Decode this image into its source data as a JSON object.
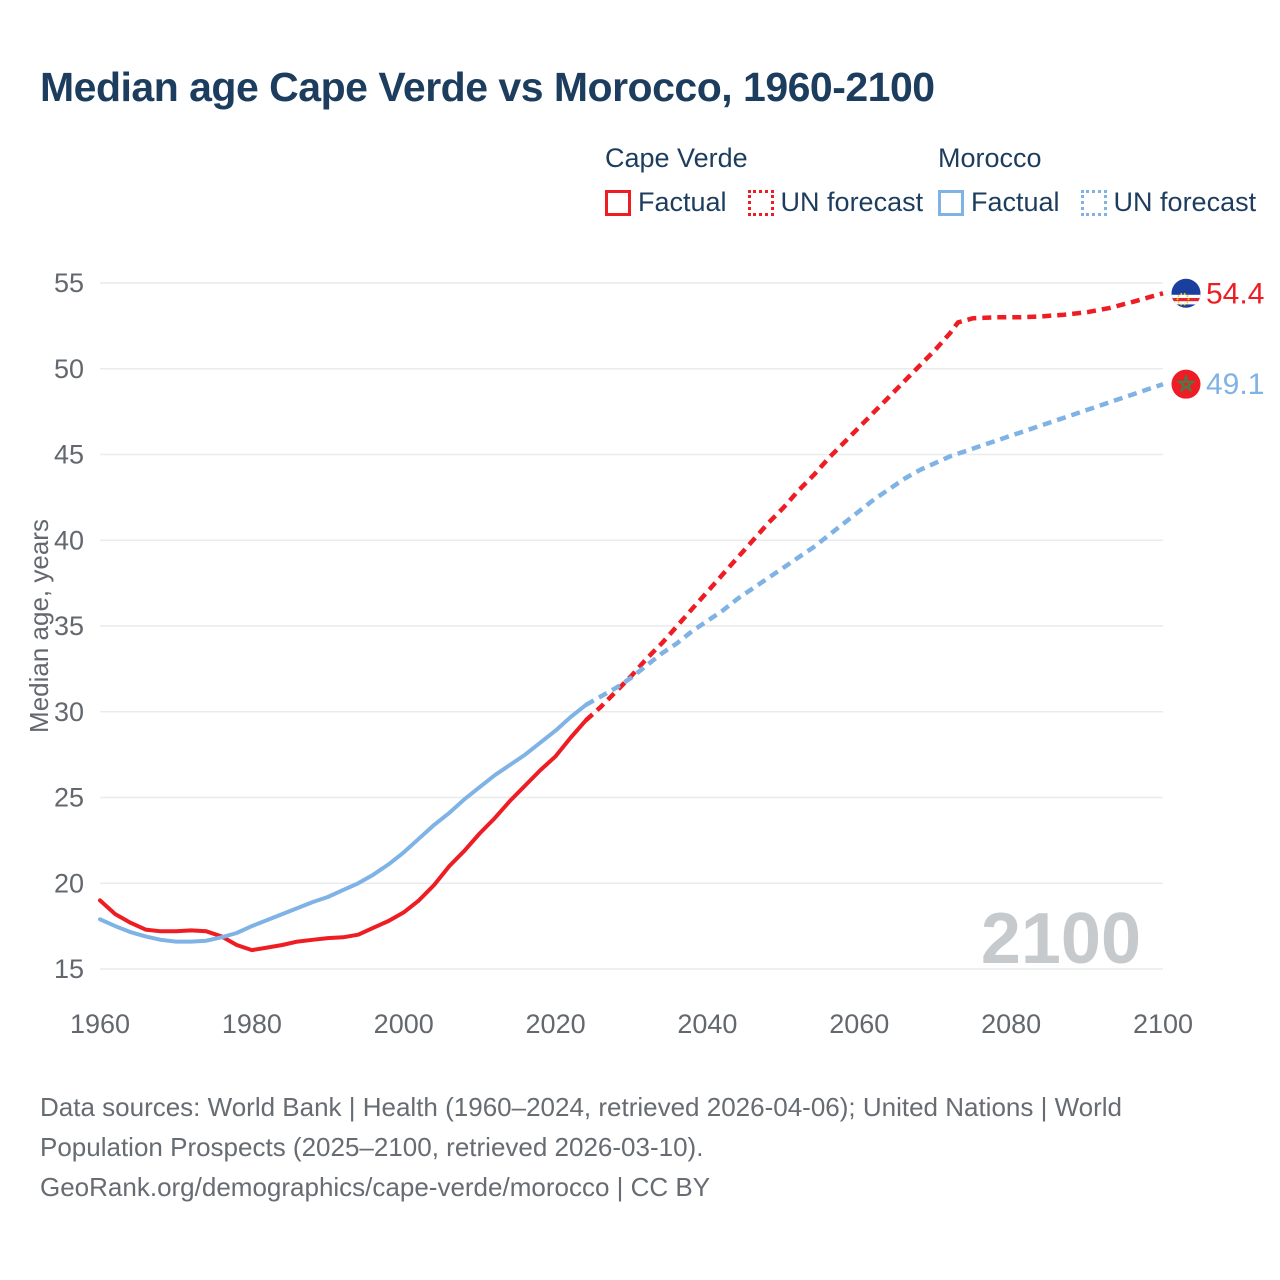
{
  "title": "Median age Cape Verde vs Morocco, 1960-2100",
  "legend": {
    "groups": [
      {
        "name": "Cape Verde",
        "color": "#ee1c23",
        "items": [
          {
            "label": "Factual",
            "style": "solid"
          },
          {
            "label": "UN forecast",
            "style": "dotted"
          }
        ]
      },
      {
        "name": "Morocco",
        "color": "#7fb2e5",
        "items": [
          {
            "label": "Factual",
            "style": "solid"
          },
          {
            "label": "UN forecast",
            "style": "dotted"
          }
        ]
      }
    ]
  },
  "chart_data": {
    "type": "line",
    "title": "Median age Cape Verde vs Morocco, 1960-2100",
    "xlabel": "",
    "ylabel": "Median age, years",
    "xlim": [
      1960,
      2100
    ],
    "ylim": [
      15,
      55
    ],
    "xticks": [
      1960,
      1980,
      2000,
      2020,
      2040,
      2060,
      2080,
      2100
    ],
    "yticks": [
      15,
      20,
      25,
      30,
      35,
      40,
      45,
      50,
      55
    ],
    "grid": true,
    "legend_position": "top-right",
    "watermark": "2100",
    "colors": {
      "axis_text": "#63686e",
      "gridline": "#e9ebec",
      "watermark": "#c7cacd"
    },
    "series": [
      {
        "name": "Cape Verde",
        "color": "#ee1c23",
        "end_label": "54.4",
        "flag": "cape-verde",
        "segments": [
          {
            "kind": "factual",
            "dash": false,
            "points": [
              [
                1960,
                19.0
              ],
              [
                1962,
                18.2
              ],
              [
                1964,
                17.7
              ],
              [
                1966,
                17.3
              ],
              [
                1968,
                17.2
              ],
              [
                1970,
                17.2
              ],
              [
                1972,
                17.25
              ],
              [
                1974,
                17.2
              ],
              [
                1976,
                16.9
              ],
              [
                1978,
                16.4
              ],
              [
                1980,
                16.1
              ],
              [
                1982,
                16.25
              ],
              [
                1984,
                16.4
              ],
              [
                1986,
                16.6
              ],
              [
                1988,
                16.7
              ],
              [
                1990,
                16.8
              ],
              [
                1992,
                16.85
              ],
              [
                1994,
                17.0
              ],
              [
                1996,
                17.4
              ],
              [
                1998,
                17.8
              ],
              [
                2000,
                18.3
              ],
              [
                2002,
                19.0
              ],
              [
                2004,
                19.9
              ],
              [
                2006,
                21.0
              ],
              [
                2008,
                21.9
              ],
              [
                2010,
                22.9
              ],
              [
                2012,
                23.8
              ],
              [
                2014,
                24.8
              ],
              [
                2016,
                25.7
              ],
              [
                2018,
                26.6
              ],
              [
                2020,
                27.4
              ],
              [
                2022,
                28.5
              ],
              [
                2024,
                29.5
              ]
            ]
          },
          {
            "kind": "un-forecast",
            "dash": true,
            "points": [
              [
                2024,
                29.5
              ],
              [
                2026,
                30.3
              ],
              [
                2028,
                31.2
              ],
              [
                2030,
                32.1
              ],
              [
                2032,
                33.1
              ],
              [
                2034,
                34.0
              ],
              [
                2036,
                35.0
              ],
              [
                2038,
                36.0
              ],
              [
                2040,
                37.0
              ],
              [
                2042,
                38.0
              ],
              [
                2044,
                39.0
              ],
              [
                2046,
                40.0
              ],
              [
                2048,
                41.0
              ],
              [
                2050,
                41.9
              ],
              [
                2052,
                42.9
              ],
              [
                2054,
                43.8
              ],
              [
                2056,
                44.8
              ],
              [
                2058,
                45.7
              ],
              [
                2060,
                46.6
              ],
              [
                2062,
                47.5
              ],
              [
                2064,
                48.4
              ],
              [
                2066,
                49.3
              ],
              [
                2068,
                50.2
              ],
              [
                2070,
                51.1
              ],
              [
                2072,
                52.1
              ],
              [
                2073,
                52.7
              ],
              [
                2075,
                52.95
              ],
              [
                2078,
                53.0
              ],
              [
                2081,
                53.0
              ],
              [
                2084,
                53.05
              ],
              [
                2087,
                53.15
              ],
              [
                2090,
                53.3
              ],
              [
                2093,
                53.55
              ],
              [
                2096,
                53.9
              ],
              [
                2098,
                54.15
              ],
              [
                2100,
                54.4
              ]
            ]
          }
        ]
      },
      {
        "name": "Morocco",
        "color": "#7fb2e5",
        "end_label": "49.1",
        "flag": "morocco",
        "segments": [
          {
            "kind": "factual",
            "dash": false,
            "points": [
              [
                1960,
                17.9
              ],
              [
                1962,
                17.5
              ],
              [
                1964,
                17.15
              ],
              [
                1966,
                16.9
              ],
              [
                1968,
                16.7
              ],
              [
                1970,
                16.6
              ],
              [
                1972,
                16.6
              ],
              [
                1974,
                16.65
              ],
              [
                1976,
                16.85
              ],
              [
                1978,
                17.1
              ],
              [
                1980,
                17.5
              ],
              [
                1982,
                17.85
              ],
              [
                1984,
                18.2
              ],
              [
                1986,
                18.55
              ],
              [
                1988,
                18.9
              ],
              [
                1990,
                19.2
              ],
              [
                1992,
                19.6
              ],
              [
                1994,
                20.0
              ],
              [
                1996,
                20.5
              ],
              [
                1998,
                21.1
              ],
              [
                2000,
                21.8
              ],
              [
                2002,
                22.6
              ],
              [
                2004,
                23.4
              ],
              [
                2006,
                24.1
              ],
              [
                2008,
                24.9
              ],
              [
                2010,
                25.6
              ],
              [
                2012,
                26.3
              ],
              [
                2014,
                26.9
              ],
              [
                2016,
                27.5
              ],
              [
                2018,
                28.2
              ],
              [
                2020,
                28.9
              ],
              [
                2022,
                29.7
              ],
              [
                2024,
                30.4
              ]
            ]
          },
          {
            "kind": "un-forecast",
            "dash": true,
            "points": [
              [
                2024,
                30.4
              ],
              [
                2026,
                30.9
              ],
              [
                2028,
                31.4
              ],
              [
                2030,
                32.0
              ],
              [
                2032,
                32.7
              ],
              [
                2034,
                33.4
              ],
              [
                2036,
                34.0
              ],
              [
                2038,
                34.7
              ],
              [
                2040,
                35.3
              ],
              [
                2042,
                35.9
              ],
              [
                2044,
                36.6
              ],
              [
                2046,
                37.2
              ],
              [
                2048,
                37.8
              ],
              [
                2050,
                38.4
              ],
              [
                2052,
                39.0
              ],
              [
                2054,
                39.6
              ],
              [
                2056,
                40.3
              ],
              [
                2058,
                41.0
              ],
              [
                2060,
                41.7
              ],
              [
                2062,
                42.4
              ],
              [
                2064,
                43.0
              ],
              [
                2066,
                43.6
              ],
              [
                2068,
                44.1
              ],
              [
                2070,
                44.5
              ],
              [
                2072,
                44.9
              ],
              [
                2074,
                45.2
              ],
              [
                2076,
                45.5
              ],
              [
                2078,
                45.8
              ],
              [
                2080,
                46.1
              ],
              [
                2082,
                46.4
              ],
              [
                2084,
                46.7
              ],
              [
                2086,
                47.0
              ],
              [
                2088,
                47.3
              ],
              [
                2090,
                47.6
              ],
              [
                2092,
                47.9
              ],
              [
                2094,
                48.2
              ],
              [
                2096,
                48.5
              ],
              [
                2098,
                48.8
              ],
              [
                2100,
                49.1
              ]
            ]
          }
        ]
      }
    ]
  },
  "footer": {
    "lines": [
      "Data sources: World Bank | Health (1960–2024, retrieved 2026-04-06); United Nations | World",
      "Population Prospects (2025–2100, retrieved 2026-03-10).",
      "GeoRank.org/demographics/cape-verde/morocco | CC BY"
    ]
  }
}
